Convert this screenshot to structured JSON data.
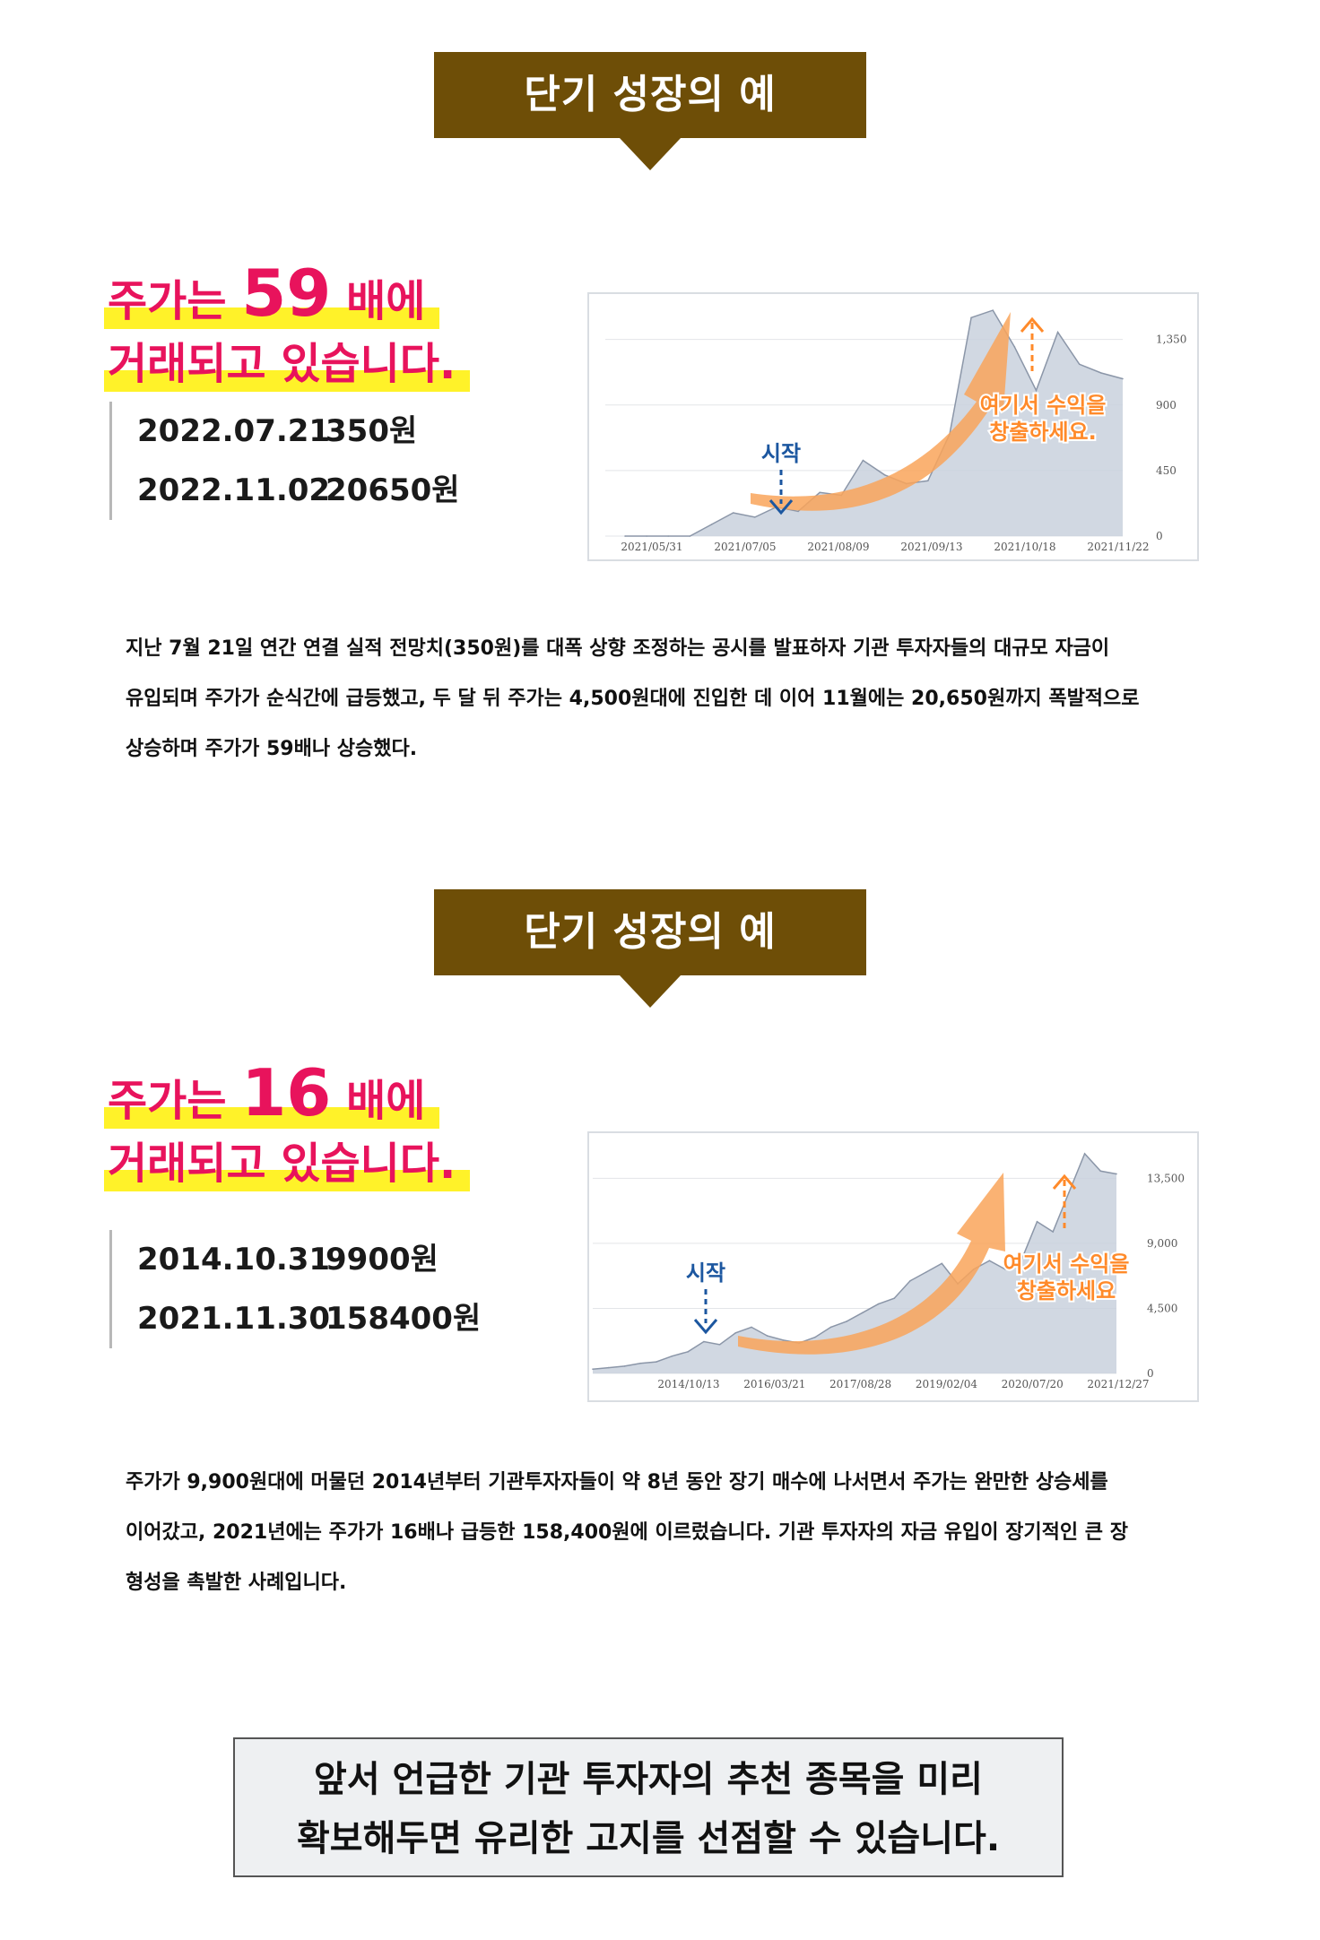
{
  "example1": {
    "banner": "단기 성장의 예",
    "headline_pre": "주가는 ",
    "headline_num": "59",
    "headline_post": " 배에",
    "headline_line2": "거래되고 있습니다.",
    "prices": [
      {
        "date": "2022.07.21",
        "price": "350원"
      },
      {
        "date": "2022.11.02",
        "price": "20650원"
      }
    ],
    "paragraph_lines": [
      "지난 7월 21일 연간 연결 실적 전망치(350원)를 대폭 상향 조정하는 공시를 발표하자 기관 투자자들의 대규모 자금이",
      "유입되며 주가가 순식간에 급등했고, 두 달 뒤 주가는 4,500원대에 진입한 데 이어 11월에는 20,650원까지 폭발적으로",
      "상승하며 주가가 59배나 상승했다."
    ]
  },
  "example2": {
    "banner": "단기 성장의 예",
    "headline_pre": "주가는 ",
    "headline_num": "16",
    "headline_post": " 배에",
    "headline_line2": "거래되고 있습니다.",
    "prices": [
      {
        "date": "2014.10.31",
        "price": "9900원"
      },
      {
        "date": "2021.11.30",
        "price": "158400원"
      }
    ],
    "paragraph_lines": [
      "주가가 9,900원대에 머물던 2014년부터 기관투자자들이 약 8년 동안 장기 매수에 나서면서 주가는 완만한 상승세를",
      "이어갔고, 2021년에는 주가가 16배나 급등한 158,400원에 이르렀습니다. 기관 투자자의 자금 유입이 장기적인 큰 장",
      "형성을 촉발한 사례입니다."
    ]
  },
  "notice": {
    "line1": "앞서 언급한 기관 투자자의 추천 종목을 미리",
    "line2": "확보해두면 유리한 고지를 선점할 수 있습니다."
  },
  "chart_data": [
    {
      "type": "area",
      "title": "",
      "xlabel": "",
      "ylabel": "",
      "x_ticks": [
        "2021/05/31",
        "2021/07/05",
        "2021/08/09",
        "2021/09/13",
        "2021/10/18",
        "2021/11/22"
      ],
      "y_ticks": [
        "0",
        "450",
        "900",
        "1,350"
      ],
      "ylim": [
        0,
        1600
      ],
      "grid": true,
      "series": [
        {
          "x": [
            "2021/05/31",
            "2021/06/14",
            "2021/06/28",
            "2021/07/05",
            "2021/07/12",
            "2021/07/19",
            "2021/07/26",
            "2021/08/02",
            "2021/08/09",
            "2021/08/16",
            "2021/08/23",
            "2021/08/30",
            "2021/09/06",
            "2021/09/13",
            "2021/09/20",
            "2021/09/27",
            "2021/10/04",
            "2021/10/11",
            "2021/10/18",
            "2021/10/25",
            "2021/11/01",
            "2021/11/08",
            "2021/11/15",
            "2021/11/22"
          ],
          "values": [
            0,
            0,
            0,
            0,
            80,
            160,
            130,
            200,
            170,
            300,
            280,
            520,
            420,
            360,
            380,
            700,
            1500,
            1550,
            1300,
            1000,
            1400,
            1180,
            1120,
            1080
          ]
        }
      ],
      "annotations": {
        "start": "시작",
        "profit_line1": "여기서 수익을",
        "profit_line2": "창출하세요."
      },
      "colors": {
        "area": "#c9d1dd",
        "line": "#8b96a8",
        "arrow": "#f9a55b",
        "start": "#1c57a0",
        "profit": "#ff8a2a"
      }
    },
    {
      "type": "area",
      "title": "",
      "xlabel": "",
      "ylabel": "",
      "x_ticks": [
        "2014/10/13",
        "2016/03/21",
        "2017/08/28",
        "2019/02/04",
        "2020/07/20",
        "2021/12/27"
      ],
      "y_ticks": [
        "0",
        "4,500",
        "9,000",
        "13,500"
      ],
      "ylim": [
        0,
        16000
      ],
      "grid": true,
      "series": [
        {
          "x": [
            "2013/10",
            "2014/01",
            "2014/04",
            "2014/07",
            "2014/10",
            "2015/01",
            "2015/04",
            "2015/07",
            "2015/10",
            "2016/01",
            "2016/04",
            "2016/07",
            "2016/10",
            "2017/01",
            "2017/04",
            "2017/07",
            "2017/10",
            "2018/01",
            "2018/04",
            "2018/07",
            "2018/10",
            "2019/01",
            "2019/04",
            "2019/07",
            "2019/10",
            "2020/01",
            "2020/04",
            "2020/07",
            "2020/10",
            "2021/01",
            "2021/04",
            "2021/07",
            "2021/10",
            "2021/12"
          ],
          "values": [
            300,
            400,
            500,
            700,
            800,
            1200,
            1500,
            2200,
            2000,
            2800,
            3200,
            2600,
            2300,
            2100,
            2500,
            3200,
            3600,
            4200,
            4800,
            5200,
            6400,
            7000,
            7600,
            6200,
            7200,
            7800,
            7200,
            7800,
            10500,
            9800,
            12500,
            15200,
            14000,
            13800
          ]
        }
      ],
      "annotations": {
        "start": "시작",
        "profit_line1": "여기서 수익을",
        "profit_line2": "창출하세요"
      },
      "colors": {
        "area": "#c9d1dd",
        "line": "#8b96a8",
        "arrow": "#f9a55b",
        "start": "#1c57a0",
        "profit": "#ff8a2a"
      }
    }
  ]
}
